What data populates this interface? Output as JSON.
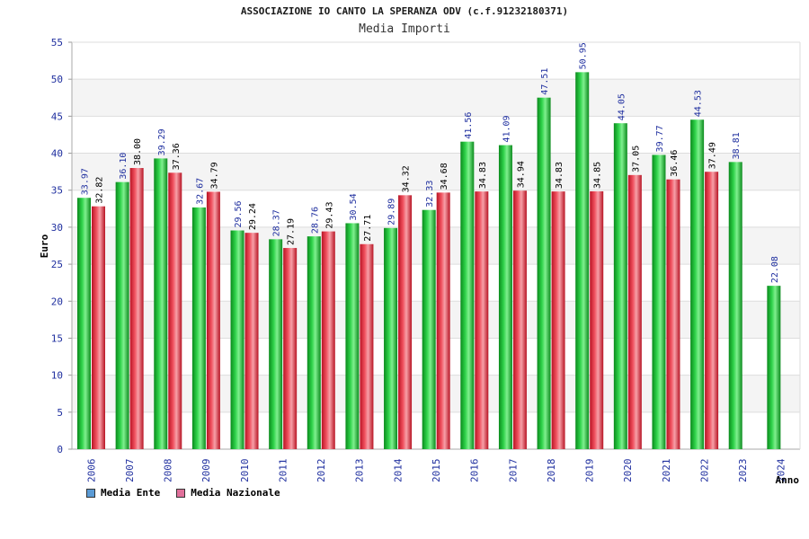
{
  "title": "ASSOCIAZIONE IO CANTO LA SPERANZA ODV (c.f.91232180371)",
  "subtitle": "Media Importi",
  "chart_data": {
    "type": "bar",
    "xlabel": "Anno",
    "ylabel": "Euro",
    "ylim": [
      0,
      55
    ],
    "yticks": [
      0,
      5,
      10,
      15,
      20,
      25,
      30,
      35,
      40,
      45,
      50,
      55
    ],
    "grid": true,
    "legend_position": "bottom-left",
    "categories": [
      "2006",
      "2007",
      "2008",
      "2009",
      "2010",
      "2011",
      "2012",
      "2013",
      "2014",
      "2015",
      "2016",
      "2017",
      "2018",
      "2019",
      "2020",
      "2021",
      "2022",
      "2023",
      "2024"
    ],
    "series": [
      {
        "name": "Media Ente",
        "color": "#22bb33",
        "legend_color": "#5b9bd5",
        "values": [
          33.97,
          36.1,
          39.29,
          32.67,
          29.56,
          28.37,
          28.76,
          30.54,
          29.89,
          32.33,
          41.56,
          41.09,
          47.51,
          50.95,
          44.05,
          39.77,
          44.53,
          38.81,
          22.08
        ],
        "labels": [
          "33.97",
          "36.10",
          "39.29",
          "32.67",
          "29.56",
          "28.37",
          "28.76",
          "30.54",
          "29.89",
          "32.33",
          "41.56",
          "41.09",
          "47.51",
          "50.95",
          "44.05",
          "39.77",
          "44.53",
          "38.81",
          "22.08"
        ]
      },
      {
        "name": "Media Nazionale",
        "color": "#e83040",
        "legend_color": "#e0709a",
        "values": [
          32.82,
          38.0,
          37.36,
          34.79,
          29.24,
          27.19,
          29.43,
          27.71,
          34.32,
          34.68,
          34.83,
          34.94,
          34.83,
          34.85,
          37.05,
          36.46,
          37.49,
          null,
          null
        ],
        "labels": [
          "32.82",
          "38.00",
          "37.36",
          "34.79",
          "29.24",
          "27.19",
          "29.43",
          "27.71",
          "34.32",
          "34.68",
          "34.83",
          "34.94",
          "34.83",
          "34.85",
          "37.05",
          "36.46",
          "37.49",
          null,
          null
        ]
      }
    ]
  }
}
